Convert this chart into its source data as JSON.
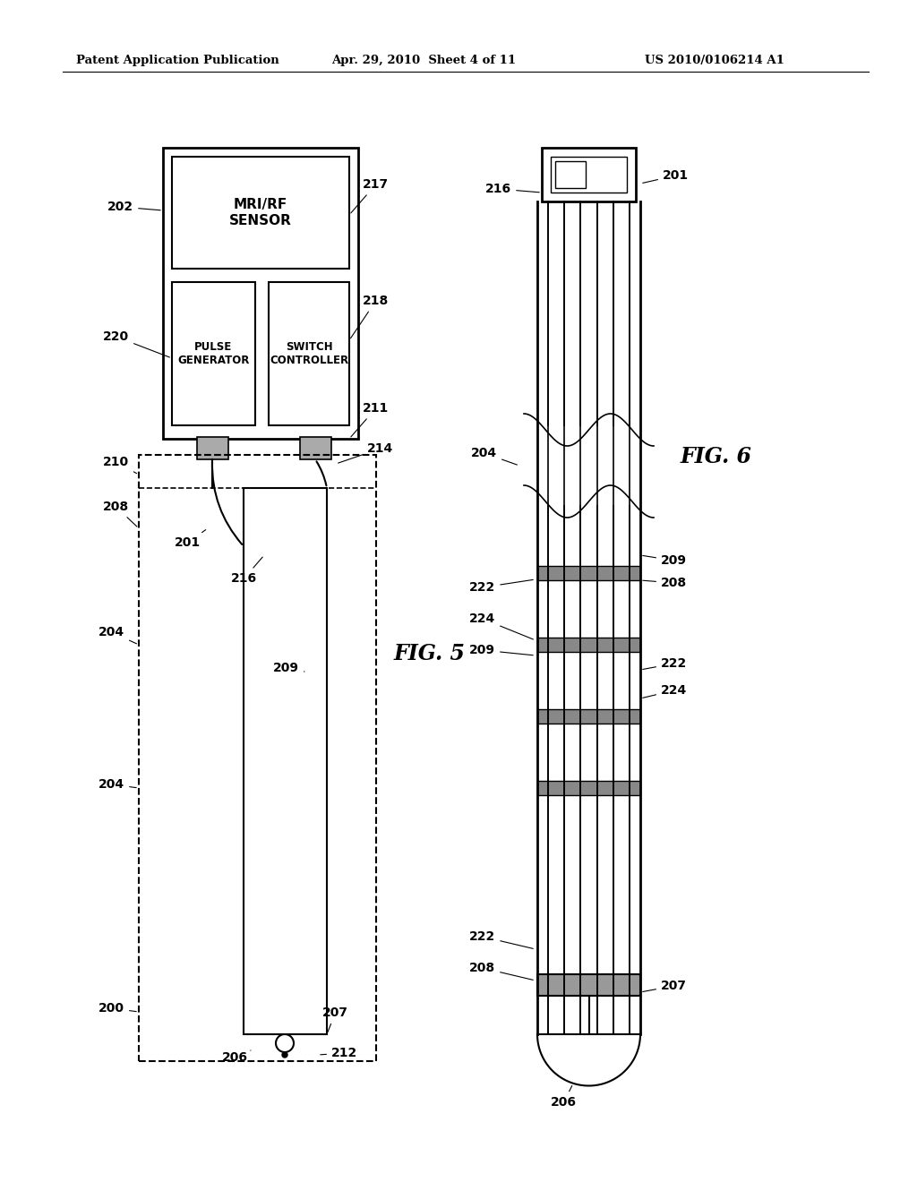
{
  "bg_color": "#ffffff",
  "header_text": "Patent Application Publication",
  "header_date": "Apr. 29, 2010  Sheet 4 of 11",
  "header_patent": "US 2010/0106214 A1",
  "fig5_label": "FIG. 5",
  "fig6_label": "FIG. 6"
}
